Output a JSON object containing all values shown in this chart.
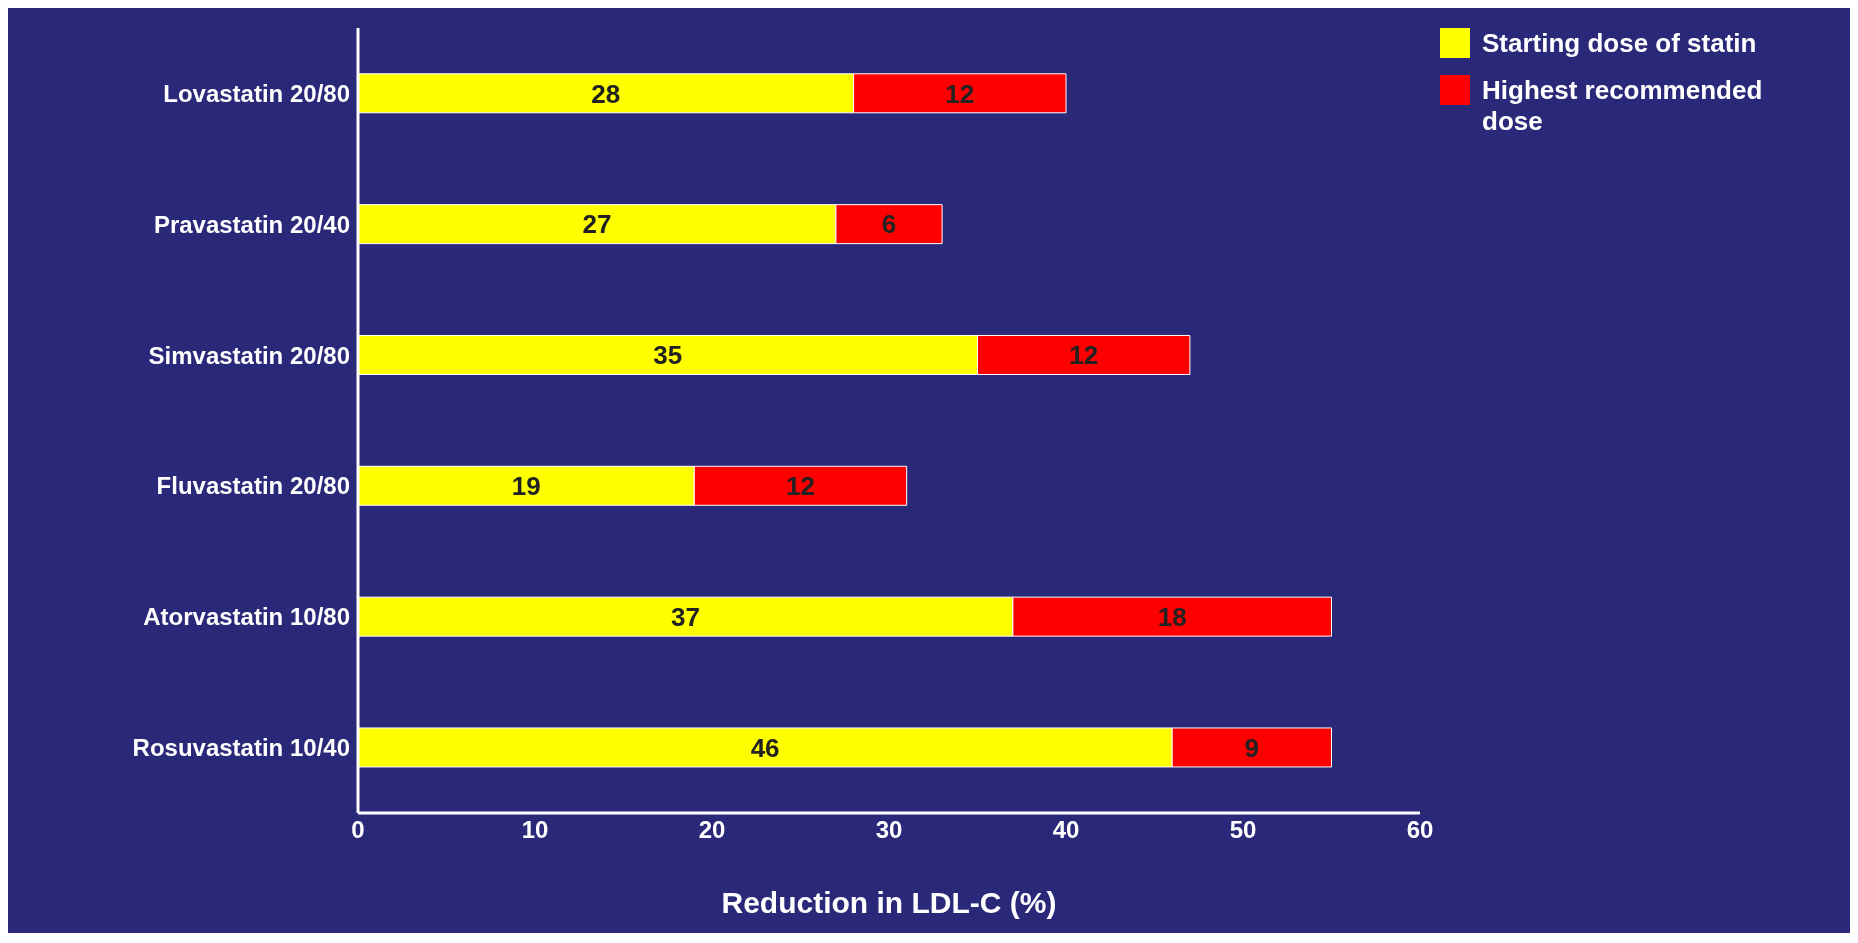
{
  "chart_data": {
    "type": "bar",
    "orientation": "horizontal",
    "stacked": true,
    "categories": [
      "Lovastatin 20/80",
      "Pravastatin 20/40",
      "Simvastatin 20/80",
      "Fluvastatin 20/80",
      "Atorvastatin 10/80",
      "Rosuvastatin 10/40"
    ],
    "series": [
      {
        "name": "Starting dose of statin",
        "color": "#ffff00",
        "values": [
          28,
          27,
          35,
          19,
          37,
          46
        ]
      },
      {
        "name": "Highest recommended dose",
        "color": "#ff0000",
        "values": [
          12,
          6,
          12,
          12,
          18,
          9
        ]
      }
    ],
    "xlim": [
      0,
      60
    ],
    "xticks": [
      0,
      10,
      20,
      30,
      40,
      50,
      60
    ],
    "xlabel": "Reduction in LDL-C (%)",
    "data_labels": true,
    "legend": "top right"
  }
}
